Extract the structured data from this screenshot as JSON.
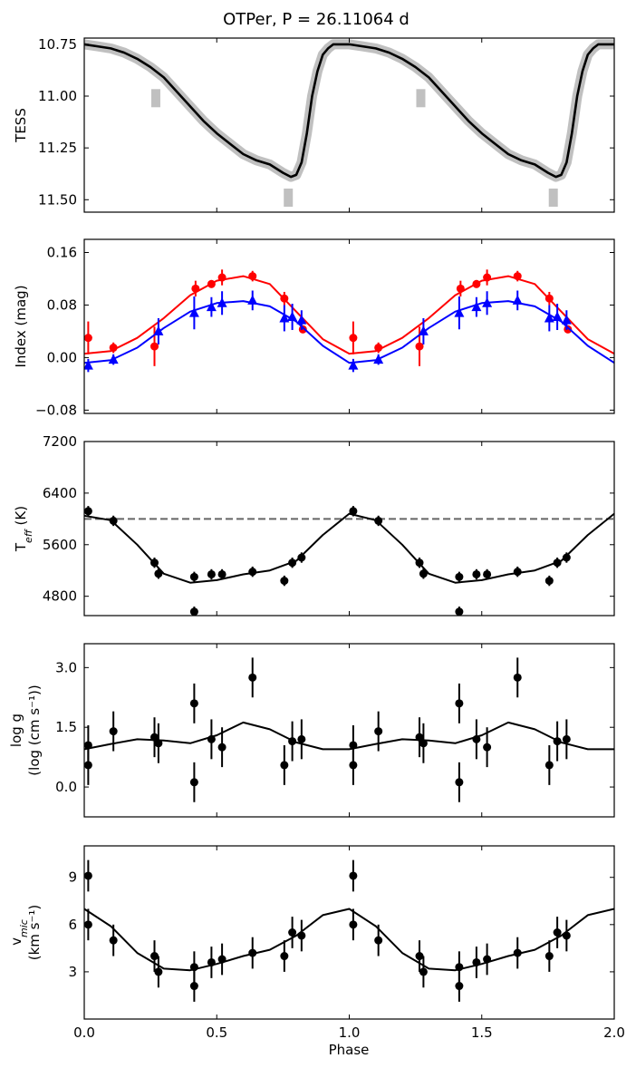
{
  "chart_data": {
    "title": "OTPer, P = 26.11064 d",
    "xlabel": "Phase",
    "xlim": [
      0.0,
      2.0
    ],
    "xticks": [
      0.0,
      0.5,
      1.0,
      1.5,
      2.0
    ],
    "xtick_labels": [
      "0.0",
      "0.5",
      "1.0",
      "1.5",
      "2.0"
    ],
    "panels": [
      {
        "id": "tess",
        "type": "line",
        "ylabel": "TESS",
        "ylim": [
          11.56,
          10.72
        ],
        "yticks": [
          10.75,
          11.0,
          11.25,
          11.5
        ],
        "ytick_labels": [
          "10.75",
          "11.00",
          "11.25",
          "11.50"
        ],
        "series": [
          {
            "name": "TESS model",
            "color": "#000000",
            "x": [
              0.0,
              0.05,
              0.1,
              0.15,
              0.2,
              0.25,
              0.3,
              0.35,
              0.4,
              0.45,
              0.5,
              0.55,
              0.6,
              0.65,
              0.7,
              0.75,
              0.78,
              0.8,
              0.82,
              0.84,
              0.86,
              0.88,
              0.9,
              0.92,
              0.94,
              0.96,
              0.98,
              1.0,
              1.05,
              1.1,
              1.15,
              1.2,
              1.25,
              1.3,
              1.35,
              1.4,
              1.45,
              1.5,
              1.55,
              1.6,
              1.65,
              1.7,
              1.75,
              1.78,
              1.8,
              1.82,
              1.84,
              1.86,
              1.88,
              1.9,
              1.92,
              1.94,
              1.96,
              1.98,
              2.0
            ],
            "y": [
              10.75,
              10.76,
              10.77,
              10.79,
              10.82,
              10.86,
              10.91,
              10.98,
              11.05,
              11.12,
              11.18,
              11.23,
              11.28,
              11.31,
              11.33,
              11.37,
              11.39,
              11.38,
              11.32,
              11.18,
              11.0,
              10.88,
              10.8,
              10.77,
              10.75,
              10.75,
              10.75,
              10.75,
              10.76,
              10.77,
              10.79,
              10.82,
              10.86,
              10.91,
              10.98,
              11.05,
              11.12,
              11.18,
              11.23,
              11.28,
              11.31,
              11.33,
              11.37,
              11.39,
              11.38,
              11.32,
              11.18,
              11.0,
              10.88,
              10.8,
              10.77,
              10.75,
              10.75,
              10.75,
              10.75
            ]
          }
        ],
        "gray_markers": [
          {
            "x": 0.27,
            "y": 11.01
          },
          {
            "x": 0.77,
            "y": 11.49
          },
          {
            "x": 1.27,
            "y": 11.01
          },
          {
            "x": 1.77,
            "y": 11.49
          }
        ]
      },
      {
        "id": "index",
        "type": "scatter",
        "ylabel": "Index (mag)",
        "ylim": [
          -0.085,
          0.18
        ],
        "yticks": [
          -0.08,
          0.0,
          0.08,
          0.16
        ],
        "ytick_labels": [
          "−0.08",
          "0.00",
          "0.08",
          "0.16"
        ],
        "series": [
          {
            "name": "Red index",
            "color": "#ff0000",
            "marker": "circle",
            "x": [
              0.015,
              0.11,
              0.265,
              0.42,
              0.48,
              0.52,
              0.635,
              0.755,
              0.825,
              1.015,
              1.11,
              1.265,
              1.42,
              1.48,
              1.52,
              1.635,
              1.755,
              1.825
            ],
            "y": [
              0.03,
              0.015,
              0.017,
              0.105,
              0.112,
              0.122,
              0.124,
              0.09,
              0.043,
              0.03,
              0.015,
              0.017,
              0.105,
              0.112,
              0.122,
              0.124,
              0.09,
              0.043
            ],
            "yerr": [
              0.025,
              0.008,
              0.03,
              0.012,
              0.006,
              0.012,
              0.008,
              0.01,
              0.006,
              0.025,
              0.008,
              0.03,
              0.012,
              0.006,
              0.012,
              0.008,
              0.01,
              0.006
            ],
            "fit_x": [
              0.0,
              0.1,
              0.2,
              0.3,
              0.4,
              0.5,
              0.6,
              0.7,
              0.8,
              0.9,
              1.0,
              1.1,
              1.2,
              1.3,
              1.4,
              1.5,
              1.6,
              1.7,
              1.8,
              1.9,
              2.0
            ],
            "fit_y": [
              0.006,
              0.01,
              0.03,
              0.06,
              0.095,
              0.117,
              0.124,
              0.112,
              0.07,
              0.028,
              0.006,
              0.01,
              0.03,
              0.06,
              0.095,
              0.117,
              0.124,
              0.112,
              0.07,
              0.028,
              0.006
            ]
          },
          {
            "name": "Blue index",
            "color": "#0000ff",
            "marker": "triangle",
            "x": [
              0.015,
              0.11,
              0.28,
              0.415,
              0.48,
              0.52,
              0.635,
              0.755,
              0.785,
              0.82,
              1.015,
              1.11,
              1.28,
              1.415,
              1.48,
              1.52,
              1.635,
              1.755,
              1.785,
              1.82
            ],
            "y": [
              -0.012,
              -0.003,
              0.04,
              0.068,
              0.077,
              0.083,
              0.087,
              0.06,
              0.062,
              0.057,
              -0.012,
              -0.003,
              0.04,
              0.068,
              0.077,
              0.083,
              0.087,
              0.06,
              0.062,
              0.057
            ],
            "yerr": [
              0.01,
              0.008,
              0.02,
              0.025,
              0.015,
              0.018,
              0.015,
              0.02,
              0.02,
              0.015,
              0.01,
              0.008,
              0.02,
              0.025,
              0.015,
              0.018,
              0.015,
              0.02,
              0.02,
              0.015
            ],
            "fit_x": [
              0.0,
              0.1,
              0.2,
              0.3,
              0.4,
              0.5,
              0.6,
              0.7,
              0.8,
              0.9,
              1.0,
              1.1,
              1.2,
              1.3,
              1.4,
              1.5,
              1.6,
              1.7,
              1.8,
              1.9,
              2.0
            ],
            "fit_y": [
              -0.008,
              -0.004,
              0.015,
              0.045,
              0.07,
              0.083,
              0.086,
              0.078,
              0.055,
              0.018,
              -0.008,
              -0.004,
              0.015,
              0.045,
              0.07,
              0.083,
              0.086,
              0.078,
              0.055,
              0.018,
              -0.008
            ]
          }
        ]
      },
      {
        "id": "teff",
        "type": "scatter",
        "ylabel": "T_eff (K)",
        "ylim": [
          4500,
          7200
        ],
        "yticks": [
          4800,
          5600,
          6400,
          7200
        ],
        "ytick_labels": [
          "4800",
          "5600",
          "6400",
          "7200"
        ],
        "reference_line": 6000,
        "series": [
          {
            "name": "Teff",
            "color": "#000000",
            "marker": "circle",
            "x": [
              0.015,
              0.11,
              0.265,
              0.28,
              0.415,
              0.415,
              0.48,
              0.52,
              0.635,
              0.755,
              0.785,
              0.82,
              1.015,
              1.11,
              1.265,
              1.28,
              1.415,
              1.415,
              1.48,
              1.52,
              1.635,
              1.755,
              1.785,
              1.82
            ],
            "y": [
              6120,
              5970,
              5320,
              5150,
              5100,
              4560,
              5140,
              5140,
              5180,
              5040,
              5320,
              5400,
              6120,
              5970,
              5320,
              5150,
              5100,
              4560,
              5140,
              5140,
              5180,
              5040,
              5320,
              5400
            ],
            "yerr": [
              80,
              80,
              80,
              80,
              80,
              80,
              80,
              80,
              80,
              80,
              80,
              80,
              80,
              80,
              80,
              80,
              80,
              80,
              80,
              80,
              80,
              80,
              80,
              80
            ],
            "fit_x": [
              0.0,
              0.1,
              0.2,
              0.3,
              0.4,
              0.5,
              0.6,
              0.7,
              0.8,
              0.9,
              1.0,
              1.1,
              1.2,
              1.3,
              1.4,
              1.5,
              1.6,
              1.7,
              1.8,
              1.9,
              2.0
            ],
            "fit_y": [
              6050,
              5980,
              5600,
              5150,
              5010,
              5050,
              5140,
              5200,
              5350,
              5750,
              6080,
              5980,
              5600,
              5150,
              5010,
              5050,
              5140,
              5200,
              5350,
              5750,
              6080
            ]
          }
        ]
      },
      {
        "id": "logg",
        "type": "scatter",
        "ylabel": "log g",
        "ylabel2": "(log (cm s⁻¹))",
        "ylim": [
          -0.75,
          3.6
        ],
        "yticks": [
          0.0,
          1.5,
          3.0
        ],
        "ytick_labels": [
          "0.0",
          "1.5",
          "3.0"
        ],
        "series": [
          {
            "name": "log g",
            "color": "#000000",
            "marker": "circle",
            "x": [
              0.015,
              0.015,
              0.11,
              0.265,
              0.28,
              0.415,
              0.415,
              0.48,
              0.52,
              0.635,
              0.755,
              0.785,
              0.82,
              1.015,
              1.015,
              1.11,
              1.265,
              1.28,
              1.415,
              1.415,
              1.48,
              1.52,
              1.635,
              1.755,
              1.785,
              1.82
            ],
            "y": [
              1.05,
              0.55,
              1.4,
              1.25,
              1.1,
              2.1,
              0.12,
              1.2,
              1.0,
              2.75,
              0.55,
              1.15,
              1.2,
              1.05,
              0.55,
              1.4,
              1.25,
              1.1,
              2.1,
              0.12,
              1.2,
              1.0,
              2.75,
              0.55,
              1.15,
              1.2
            ],
            "yerr": [
              0.5,
              0.5,
              0.5,
              0.5,
              0.5,
              0.5,
              0.5,
              0.5,
              0.5,
              0.5,
              0.5,
              0.5,
              0.5,
              0.5,
              0.5,
              0.5,
              0.5,
              0.5,
              0.5,
              0.5,
              0.5,
              0.5,
              0.5,
              0.5,
              0.5,
              0.5
            ],
            "fit_x": [
              0.0,
              0.1,
              0.2,
              0.3,
              0.4,
              0.5,
              0.6,
              0.7,
              0.8,
              0.9,
              1.0,
              1.1,
              1.2,
              1.3,
              1.4,
              1.5,
              1.6,
              1.7,
              1.8,
              1.9,
              2.0
            ],
            "fit_y": [
              0.95,
              1.08,
              1.2,
              1.17,
              1.1,
              1.3,
              1.62,
              1.45,
              1.12,
              0.95,
              0.95,
              1.08,
              1.2,
              1.17,
              1.1,
              1.3,
              1.62,
              1.45,
              1.12,
              0.95,
              0.95
            ]
          }
        ]
      },
      {
        "id": "vmic",
        "type": "scatter",
        "ylabel": "v_mic",
        "ylabel2": "(km s⁻¹)",
        "ylim": [
          0.0,
          11.0
        ],
        "yticks": [
          3,
          6,
          9
        ],
        "ytick_labels": [
          "3",
          "6",
          "9"
        ],
        "series": [
          {
            "name": "v_mic",
            "color": "#000000",
            "marker": "circle",
            "x": [
              0.015,
              0.015,
              0.11,
              0.265,
              0.28,
              0.415,
              0.415,
              0.48,
              0.52,
              0.635,
              0.755,
              0.785,
              0.82,
              1.015,
              1.015,
              1.11,
              1.265,
              1.28,
              1.415,
              1.415,
              1.48,
              1.52,
              1.635,
              1.755,
              1.785,
              1.82
            ],
            "y": [
              9.1,
              6.0,
              5.0,
              4.0,
              3.0,
              3.3,
              2.1,
              3.6,
              3.8,
              4.2,
              4.0,
              5.5,
              5.3,
              9.1,
              6.0,
              5.0,
              4.0,
              3.0,
              3.3,
              2.1,
              3.6,
              3.8,
              4.2,
              4.0,
              5.5,
              5.3
            ],
            "yerr": [
              1.0,
              1.0,
              1.0,
              1.0,
              1.0,
              1.0,
              1.0,
              1.0,
              1.0,
              1.0,
              1.0,
              1.0,
              1.0,
              1.0,
              1.0,
              1.0,
              1.0,
              1.0,
              1.0,
              1.0,
              1.0,
              1.0,
              1.0,
              1.0,
              1.0,
              1.0
            ],
            "fit_x": [
              0.0,
              0.1,
              0.2,
              0.3,
              0.4,
              0.5,
              0.6,
              0.7,
              0.8,
              0.9,
              1.0,
              1.1,
              1.2,
              1.3,
              1.4,
              1.5,
              1.6,
              1.7,
              1.8,
              1.9,
              2.0
            ],
            "fit_y": [
              7.0,
              5.9,
              4.2,
              3.2,
              3.1,
              3.5,
              4.0,
              4.4,
              5.3,
              6.6,
              7.0,
              5.9,
              4.2,
              3.2,
              3.1,
              3.5,
              4.0,
              4.4,
              5.3,
              6.6,
              7.0
            ]
          }
        ]
      }
    ]
  }
}
